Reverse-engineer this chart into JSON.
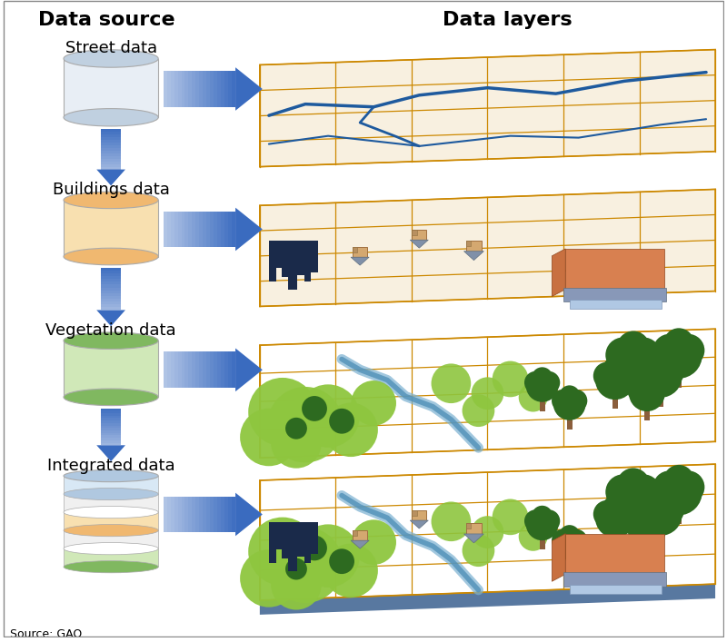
{
  "title_left": "Data source",
  "title_right": "Data layers",
  "layers": [
    {
      "label": "Street data",
      "type": "street"
    },
    {
      "label": "Buildings data",
      "type": "buildings"
    },
    {
      "label": "Vegetation data",
      "type": "vegetation"
    },
    {
      "label": "Integrated data",
      "type": "integrated"
    }
  ],
  "arrow_color": "#3a6bbf",
  "grid_color": "#cc8800",
  "street_line_color": "#1e5a9e",
  "vegetation_color_light": "#8ec63f",
  "vegetation_color_dark": "#2d6a20",
  "vegetation_color_medium": "#4a8a30",
  "river_color": "#7ab0d0",
  "city_color": "#1a2a4a",
  "integrated_base_color": "#5878a0",
  "source_text": "Source: GAO.",
  "bg_color": "#ffffff",
  "cyl_street_top": "#c0d0e0",
  "cyl_street_body": "#e8eef5",
  "cyl_buildings_top": "#f0b870",
  "cyl_buildings_body": "#f8e0b0",
  "cyl_veg_top": "#80b860",
  "cyl_veg_body": "#d0e8b8",
  "cyl_int_top1": "#b0c8e0",
  "cyl_int_top2": "#f0b870",
  "cyl_int_top3": "#80b860"
}
